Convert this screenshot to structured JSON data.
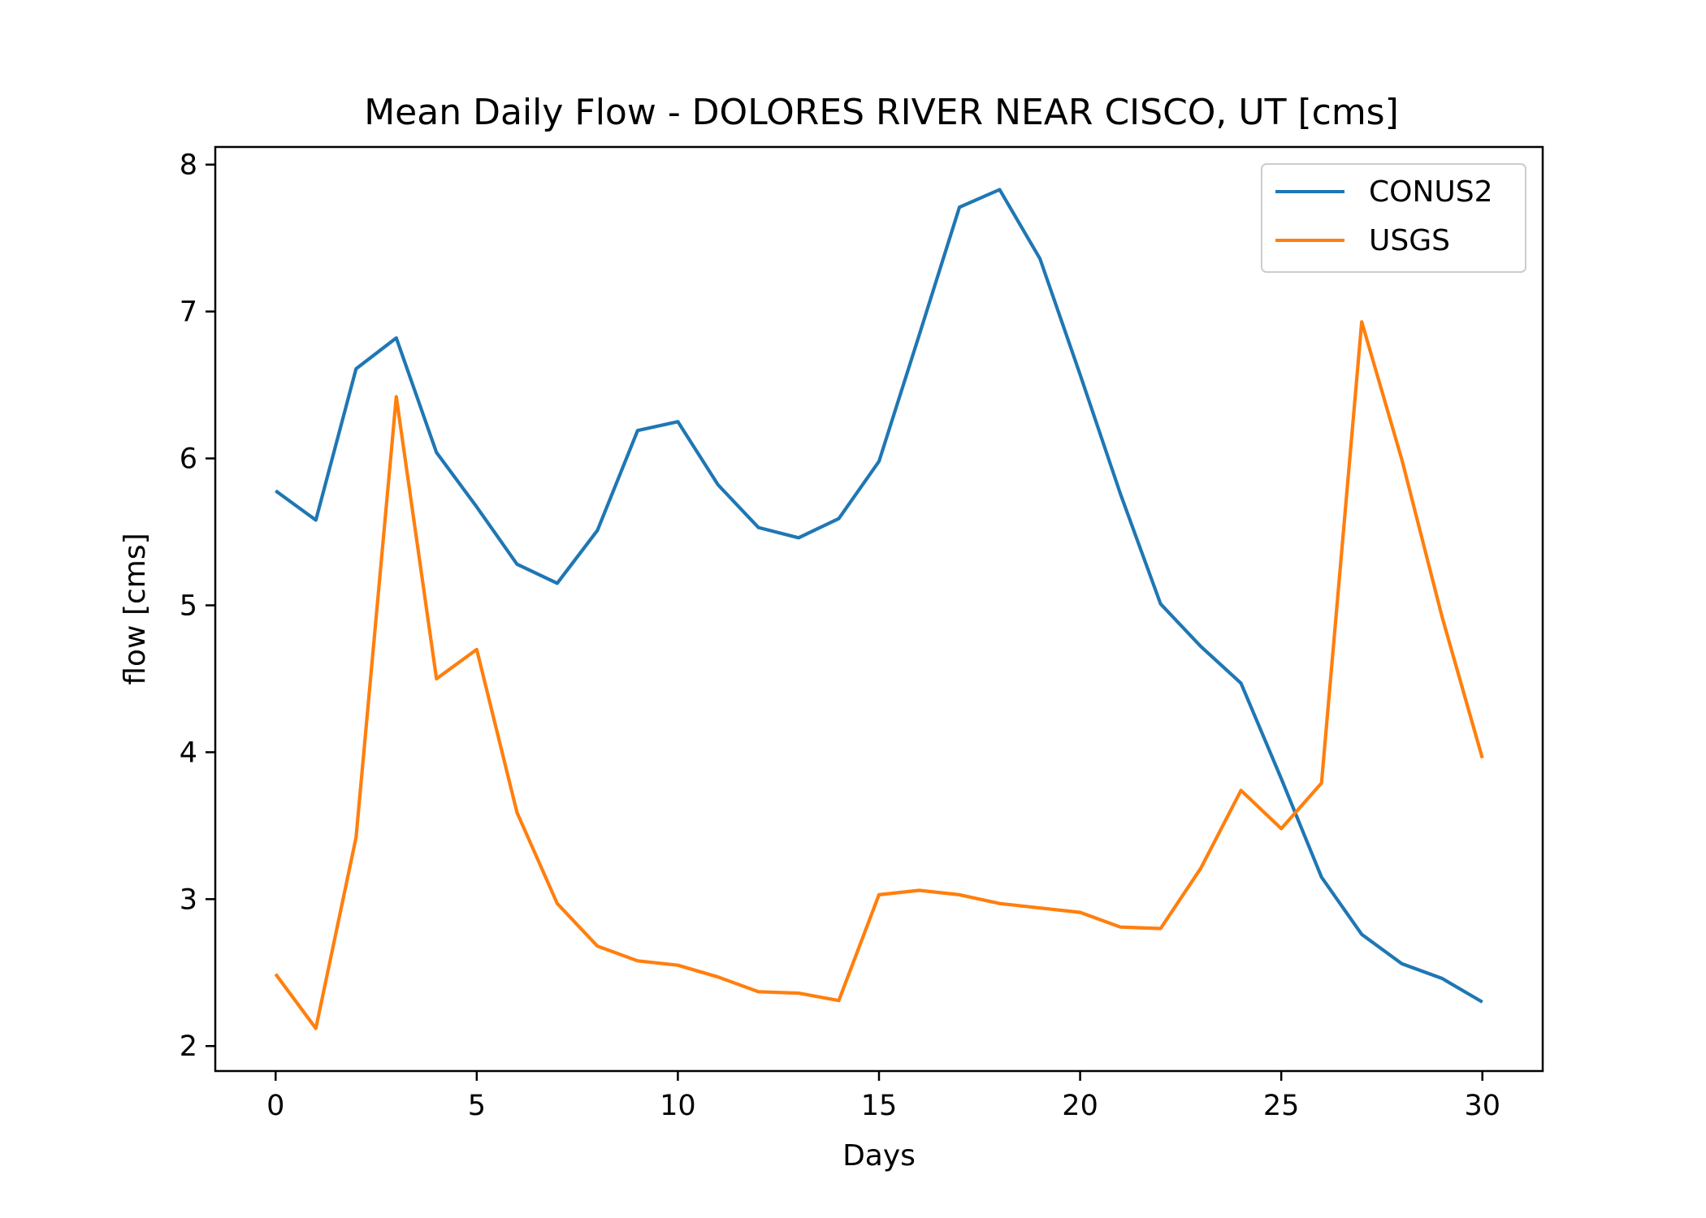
{
  "chart_data": {
    "type": "line",
    "title": "Mean Daily Flow - DOLORES RIVER NEAR CISCO, UT [cms]",
    "xlabel": "Days",
    "ylabel": "flow [cms]",
    "xlim": [
      -1.5,
      31.5
    ],
    "ylim": [
      1.83,
      8.12
    ],
    "xticks": [
      0,
      5,
      10,
      15,
      20,
      25,
      30
    ],
    "yticks": [
      2,
      3,
      4,
      5,
      6,
      7,
      8
    ],
    "grid": false,
    "legend_position": "top-right",
    "x": [
      0,
      1,
      2,
      3,
      4,
      5,
      6,
      7,
      8,
      9,
      10,
      11,
      12,
      13,
      14,
      15,
      16,
      17,
      18,
      19,
      20,
      21,
      22,
      23,
      24,
      25,
      26,
      27,
      28,
      29,
      30
    ],
    "series": [
      {
        "name": "CONUS2",
        "color": "#1f77b4",
        "values": [
          5.78,
          5.58,
          6.61,
          6.82,
          6.04,
          5.67,
          5.28,
          5.15,
          5.51,
          6.19,
          6.25,
          5.82,
          5.53,
          5.46,
          5.59,
          5.98,
          6.84,
          7.71,
          7.83,
          7.36,
          6.57,
          5.76,
          5.01,
          4.72,
          4.47,
          3.82,
          3.15,
          2.76,
          2.56,
          2.46,
          2.3
        ]
      },
      {
        "name": "USGS",
        "color": "#ff7f0e",
        "values": [
          2.49,
          2.12,
          3.42,
          6.42,
          4.5,
          4.7,
          3.59,
          2.97,
          2.68,
          2.58,
          2.55,
          2.47,
          2.37,
          2.36,
          2.31,
          3.03,
          3.06,
          3.03,
          2.97,
          2.94,
          2.91,
          2.81,
          2.8,
          3.21,
          3.74,
          3.48,
          3.79,
          6.93,
          5.99,
          4.92,
          3.96
        ]
      }
    ]
  }
}
